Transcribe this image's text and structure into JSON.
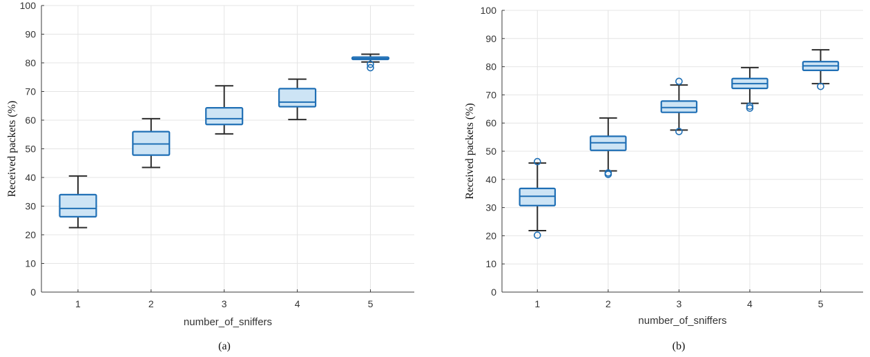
{
  "colors": {
    "box_edge": "#1f6fb5",
    "box_fill": "#cde4f5",
    "whisker": "#2b2b2b",
    "grid": "#e4e4e4"
  },
  "chart_data": [
    {
      "type": "box",
      "caption": "(a)",
      "xlabel": "number_of_sniffers",
      "ylabel": "Received packets (%)",
      "ylim": [
        0,
        100
      ],
      "yticks": [
        0,
        10,
        20,
        30,
        40,
        50,
        60,
        70,
        80,
        90,
        100
      ],
      "categories": [
        "1",
        "2",
        "3",
        "4",
        "5"
      ],
      "grid": true,
      "boxes": [
        {
          "min": 22.5,
          "q1": 26.3,
          "median": 29.2,
          "q3": 34.0,
          "max": 40.5,
          "outliers": []
        },
        {
          "min": 43.5,
          "q1": 47.8,
          "median": 51.7,
          "q3": 56.0,
          "max": 60.5,
          "outliers": []
        },
        {
          "min": 55.2,
          "q1": 58.5,
          "median": 60.5,
          "q3": 64.3,
          "max": 72.0,
          "outliers": []
        },
        {
          "min": 60.2,
          "q1": 64.7,
          "median": 66.3,
          "q3": 71.0,
          "max": 74.3,
          "outliers": []
        },
        {
          "min": 80.3,
          "q1": 81.2,
          "median": 81.5,
          "q3": 82.0,
          "max": 83.0,
          "outliers": [
            79.5,
            78.3
          ]
        }
      ]
    },
    {
      "type": "box",
      "caption": "(b)",
      "xlabel": "number_of_sniffers",
      "ylabel": "Received packets (%)",
      "ylim": [
        0,
        100
      ],
      "yticks": [
        0,
        10,
        20,
        30,
        40,
        50,
        60,
        70,
        80,
        90,
        100
      ],
      "categories": [
        "1",
        "2",
        "3",
        "4",
        "5"
      ],
      "grid": true,
      "boxes": [
        {
          "min": 21.8,
          "q1": 30.7,
          "median": 34.0,
          "q3": 36.8,
          "max": 45.8,
          "outliers": [
            46.3,
            20.2
          ]
        },
        {
          "min": 43.0,
          "q1": 50.3,
          "median": 53.0,
          "q3": 55.3,
          "max": 61.8,
          "outliers": [
            42.3,
            41.8
          ]
        },
        {
          "min": 57.5,
          "q1": 63.8,
          "median": 65.5,
          "q3": 67.8,
          "max": 73.5,
          "outliers": [
            74.8,
            57.0
          ]
        },
        {
          "min": 67.0,
          "q1": 72.3,
          "median": 74.0,
          "q3": 75.8,
          "max": 79.7,
          "outliers": [
            66.0,
            65.3
          ]
        },
        {
          "min": 74.0,
          "q1": 78.7,
          "median": 80.3,
          "q3": 81.8,
          "max": 86.0,
          "outliers": [
            73.0
          ]
        }
      ]
    }
  ]
}
